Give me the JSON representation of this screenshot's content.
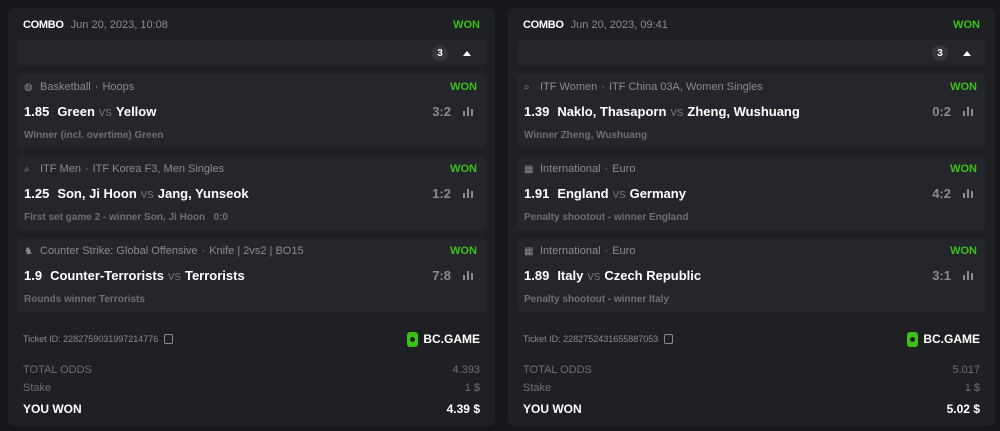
{
  "colors": {
    "won": "#3bc117",
    "card": "#1f2024",
    "panel": "#25262b"
  },
  "tickets": [
    {
      "type": "COMBO",
      "date": "Jun 20, 2023, 10:08",
      "status": "WON",
      "count": "3",
      "selections": [
        {
          "icon": "basketball-icon",
          "sport": "Basketball",
          "league": "Hoops",
          "status": "WON",
          "odds": "1.85",
          "home": "Green",
          "vs": "vs",
          "away": "Yellow",
          "score": "3:2",
          "market": "Winner (incl. overtime) Green"
        },
        {
          "icon": "tennis-icon",
          "sport": "ITF Men",
          "league": "ITF Korea F3, Men Singles",
          "status": "WON",
          "odds": "1.25",
          "home": "Son, Ji Hoon",
          "vs": "vs",
          "away": "Jang, Yunseok",
          "score": "1:2",
          "market": "First set game 2 - winner Son, Ji Hoon   0:0"
        },
        {
          "icon": "counter-strike-icon",
          "sport": "Counter Strike: Global Offensive",
          "league": "Knife | 2vs2 | BO15",
          "status": "WON",
          "odds": "1.9",
          "home": "Counter-Terrorists",
          "vs": "vs",
          "away": "Terrorists",
          "score": "7:8",
          "market": "Rounds winner Terrorists"
        }
      ],
      "ticket_id": "Ticket ID: 2282759031997214776",
      "brand": "BC.GAME",
      "total_odds_label": "TOTAL ODDS",
      "total_odds": "4.393",
      "stake_label": "Stake",
      "stake": "1 $",
      "won_label": "YOU WON",
      "won_amount": "4.39 $"
    },
    {
      "type": "COMBO",
      "date": "Jun 20, 2023, 09:41",
      "status": "WON",
      "count": "3",
      "selections": [
        {
          "icon": "tennis-icon",
          "sport": "ITF Women",
          "league": "ITF China 03A, Women Singles",
          "status": "WON",
          "odds": "1.39",
          "home": "Naklo, Thasaporn",
          "vs": "vs",
          "away": "Zheng, Wushuang",
          "score": "0:2",
          "market": "Winner Zheng, Wushuang"
        },
        {
          "icon": "fifa-icon",
          "sport": "International",
          "league": "Euro",
          "status": "WON",
          "odds": "1.91",
          "home": "England",
          "vs": "vs",
          "away": "Germany",
          "score": "4:2",
          "market": "Penalty shootout - winner England"
        },
        {
          "icon": "fifa-icon",
          "sport": "International",
          "league": "Euro",
          "status": "WON",
          "odds": "1.89",
          "home": "Italy",
          "vs": "vs",
          "away": "Czech Republic",
          "score": "3:1",
          "market": "Penalty shootout - winner Italy"
        }
      ],
      "ticket_id": "Ticket ID: 2282752431655887053",
      "brand": "BC.GAME",
      "total_odds_label": "TOTAL ODDS",
      "total_odds": "5.017",
      "stake_label": "Stake",
      "stake": "1 $",
      "won_label": "YOU WON",
      "won_amount": "5.02 $"
    }
  ]
}
